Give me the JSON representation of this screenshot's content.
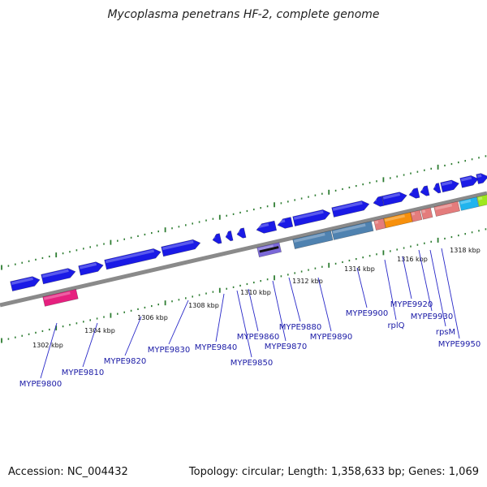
{
  "title": "Mycoplasma penetrans HF-2, complete genome",
  "footer": {
    "accession": "Accession: NC_004432",
    "stats": "Topology: circular; Length: 1,358,633 bp; Genes: 1,069"
  },
  "colors": {
    "backbone": "#8a8a8a",
    "tick": "#2e7d32",
    "gene_blue": "#1a1ae6",
    "gene_steel": "#4f82b0",
    "gene_orange": "#f7900c",
    "gene_salmon": "#e47c7c",
    "gene_magenta": "#e6207f",
    "gene_cyan": "#20b4ee",
    "gene_lime": "#9ee81e",
    "gene_purple": "#7b68d8",
    "label": "#1a1aa6",
    "leader": "#2828c8"
  },
  "scale_labels": [
    "1302 kbp",
    "1304 kbp",
    "1306 kbp",
    "1308 kbp",
    "1310 kbp",
    "1312 kbp",
    "1314 kbp",
    "1316 kbp",
    "1318 kbp"
  ],
  "gene_labels": [
    "MYPE9800",
    "MYPE9810",
    "MYPE9820",
    "MYPE9830",
    "MYPE9840",
    "MYPE9850",
    "MYPE9860",
    "MYPE9870",
    "MYPE9880",
    "MYPE9890",
    "MYPE9900",
    "rplQ",
    "MYPE9920",
    "MYPE9930",
    "rpsM",
    "MYPE9950"
  ]
}
